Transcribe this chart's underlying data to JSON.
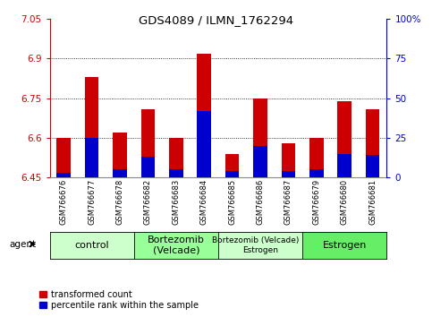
{
  "title": "GDS4089 / ILMN_1762294",
  "samples": [
    "GSM766676",
    "GSM766677",
    "GSM766678",
    "GSM766682",
    "GSM766683",
    "GSM766684",
    "GSM766685",
    "GSM766686",
    "GSM766687",
    "GSM766679",
    "GSM766680",
    "GSM766681"
  ],
  "red_values": [
    6.6,
    6.83,
    6.62,
    6.71,
    6.6,
    6.92,
    6.54,
    6.75,
    6.58,
    6.6,
    6.74,
    6.71
  ],
  "blue_pct": [
    3,
    25,
    5,
    13,
    5,
    42,
    4,
    20,
    4,
    5,
    15,
    14
  ],
  "ymin": 6.45,
  "ymax": 7.05,
  "yticks": [
    6.45,
    6.6,
    6.75,
    6.9,
    7.05
  ],
  "ytick_labels": [
    "6.45",
    "6.6",
    "6.75",
    "6.9",
    "7.05"
  ],
  "right_yticks": [
    0,
    25,
    50,
    75,
    100
  ],
  "right_ytick_labels": [
    "0",
    "25",
    "50",
    "75",
    "100%"
  ],
  "gridlines": [
    6.6,
    6.75,
    6.9
  ],
  "groups": [
    {
      "label": "control",
      "start": 0,
      "end": 3,
      "color": "#ccffcc"
    },
    {
      "label": "Bortezomib\n(Velcade)",
      "start": 3,
      "end": 6,
      "color": "#99ff99"
    },
    {
      "label": "Bortezomib (Velcade) +\nEstrogen",
      "start": 6,
      "end": 9,
      "color": "#ccffcc"
    },
    {
      "label": "Estrogen",
      "start": 9,
      "end": 12,
      "color": "#66ee66"
    }
  ],
  "bar_width": 0.5,
  "bar_color_red": "#cc0000",
  "bar_color_blue": "#0000cc",
  "left_axis_color": "#cc0000",
  "right_axis_color": "#0000cc",
  "bg_color": "#ffffff",
  "legend_red_label": "transformed count",
  "legend_blue_label": "percentile rank within the sample",
  "agent_label": "agent"
}
